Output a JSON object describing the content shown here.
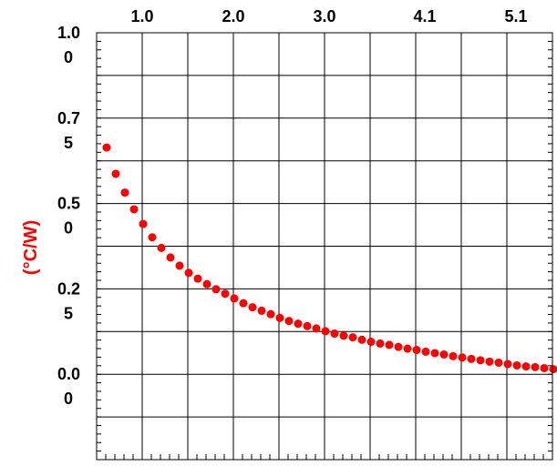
{
  "chart_data": {
    "type": "scatter",
    "title": "",
    "xlabel": "",
    "ylabel": "(°C/W)",
    "xlim": [
      0.5,
      5.5
    ],
    "ylim": [
      -0.25,
      1.0
    ],
    "x_tick_labels": [
      "1.0",
      "2.0",
      "3.0",
      "4.1",
      "5.1"
    ],
    "x_tick_values": [
      1.0,
      2.0,
      3.0,
      4.1,
      5.1
    ],
    "y_tick_labels": [
      {
        "lines": [
          "1.0",
          "0"
        ],
        "value": 1.0
      },
      {
        "lines": [
          "0.7",
          "5"
        ],
        "value": 0.75
      },
      {
        "lines": [
          "0.5",
          "0"
        ],
        "value": 0.5
      },
      {
        "lines": [
          "0.2",
          "5"
        ],
        "value": 0.25
      },
      {
        "lines": [
          "0.0",
          "0"
        ],
        "value": 0.0
      }
    ],
    "grid": true,
    "colors": {
      "series": "#ff0000",
      "ylabel": "#ff0000",
      "grid": "#000000",
      "background": "#ffffff"
    },
    "series": [
      {
        "x": [
          0.61,
          0.71,
          0.81,
          0.91,
          1.01,
          1.11,
          1.21,
          1.31,
          1.41,
          1.51,
          1.61,
          1.71,
          1.81,
          1.91,
          2.01,
          2.11,
          2.21,
          2.31,
          2.41,
          2.51,
          2.61,
          2.71,
          2.81,
          2.91,
          3.01,
          3.11,
          3.21,
          3.31,
          3.41,
          3.51,
          3.61,
          3.71,
          3.81,
          3.91,
          4.01,
          4.11,
          4.21,
          4.31,
          4.41,
          4.51,
          4.61,
          4.71,
          4.81,
          4.91,
          5.01,
          5.11,
          5.21,
          5.31,
          5.41,
          5.51
        ],
        "y": [
          0.664,
          0.587,
          0.532,
          0.483,
          0.44,
          0.401,
          0.37,
          0.342,
          0.318,
          0.297,
          0.28,
          0.264,
          0.249,
          0.236,
          0.222,
          0.208,
          0.196,
          0.186,
          0.176,
          0.165,
          0.156,
          0.148,
          0.141,
          0.134,
          0.126,
          0.119,
          0.113,
          0.108,
          0.101,
          0.095,
          0.09,
          0.086,
          0.08,
          0.075,
          0.071,
          0.066,
          0.062,
          0.058,
          0.053,
          0.049,
          0.045,
          0.041,
          0.037,
          0.034,
          0.03,
          0.026,
          0.023,
          0.021,
          0.018,
          0.015
        ]
      }
    ]
  }
}
